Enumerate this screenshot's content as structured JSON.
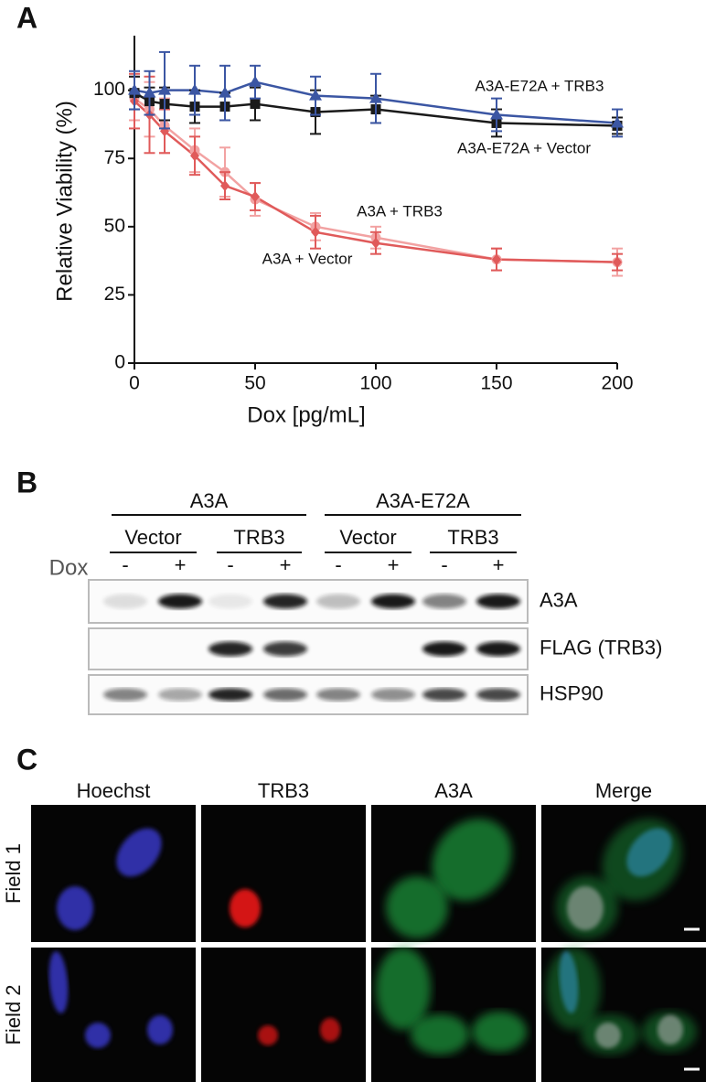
{
  "panel_labels": [
    "A",
    "B",
    "C"
  ],
  "chart_data": {
    "type": "line",
    "x_label": "Dox [pg/mL]",
    "y_label": "Relative Viability (%)",
    "x": [
      0,
      6.25,
      12.5,
      25,
      37.5,
      50,
      75,
      100,
      150,
      200
    ],
    "series": [
      {
        "name": "A3A-E72A + TRB3",
        "color": "#3b56a3",
        "marker": "triangle",
        "values": [
          100,
          99,
          100,
          100,
          99,
          103,
          98,
          97,
          91,
          88
        ],
        "errors": [
          7,
          8,
          14,
          9,
          10,
          6,
          7,
          9,
          6,
          5
        ]
      },
      {
        "name": "A3A-E72A + Vector",
        "color": "#1a1a1a",
        "marker": "square",
        "values": [
          99,
          96,
          95,
          94,
          94,
          95,
          92,
          93,
          88,
          87
        ],
        "errors": [
          6,
          5,
          6,
          6,
          5,
          6,
          8,
          5,
          5,
          3
        ]
      },
      {
        "name": "A3A + TRB3",
        "color": "#f2a2a2",
        "marker": "circle",
        "values": [
          97,
          93,
          87,
          78,
          70,
          60,
          50,
          46,
          38,
          37
        ],
        "errors": [
          8,
          10,
          10,
          8,
          9,
          6,
          5,
          4,
          4,
          5
        ]
      },
      {
        "name": "A3A + Vector",
        "color": "#e05a5a",
        "marker": "diamond",
        "values": [
          96,
          91,
          85,
          76,
          65,
          61,
          48,
          44,
          38,
          37
        ],
        "errors": [
          10,
          14,
          8,
          7,
          5,
          5,
          6,
          4,
          4,
          3
        ]
      }
    ],
    "xlim": [
      0,
      200
    ],
    "xticks": [
      0,
      50,
      100,
      150,
      200
    ],
    "ylim": [
      0,
      120
    ],
    "yticks": [
      0,
      25,
      50,
      75,
      100
    ]
  },
  "blot": {
    "groups": [
      "A3A",
      "A3A-E72A"
    ],
    "subgroups": [
      "Vector",
      "TRB3",
      "Vector",
      "TRB3"
    ],
    "treatment_label": "Dox",
    "treatment": [
      "-",
      "+",
      "-",
      "+",
      "-",
      "+",
      "-",
      "+"
    ],
    "rows": [
      "A3A",
      "FLAG (TRB3)",
      "HSP90"
    ]
  },
  "microscopy": {
    "columns": [
      "Hoechst",
      "TRB3",
      "A3A",
      "Merge"
    ],
    "rows": [
      "Field 1",
      "Field 2"
    ]
  }
}
